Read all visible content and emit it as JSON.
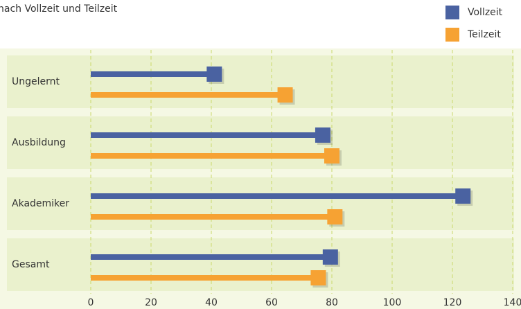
{
  "chart_data": {
    "type": "bar",
    "title": "nach Vollzeit und Teilzeit",
    "categories": [
      "Ungelernt",
      "Ausbildung",
      "Akademiker",
      "Gesamt"
    ],
    "series": [
      {
        "name": "Vollzeit",
        "color": "#4a62a1",
        "values": [
          41,
          77,
          123.5,
          79.5
        ]
      },
      {
        "name": "Teilzeit",
        "color": "#f6a233",
        "values": [
          64.5,
          80,
          81,
          75.5
        ]
      }
    ],
    "xlim": [
      0,
      140
    ],
    "xticks": [
      0,
      20,
      40,
      60,
      80,
      100,
      120,
      140
    ],
    "grid": true,
    "legend": "top-right"
  }
}
